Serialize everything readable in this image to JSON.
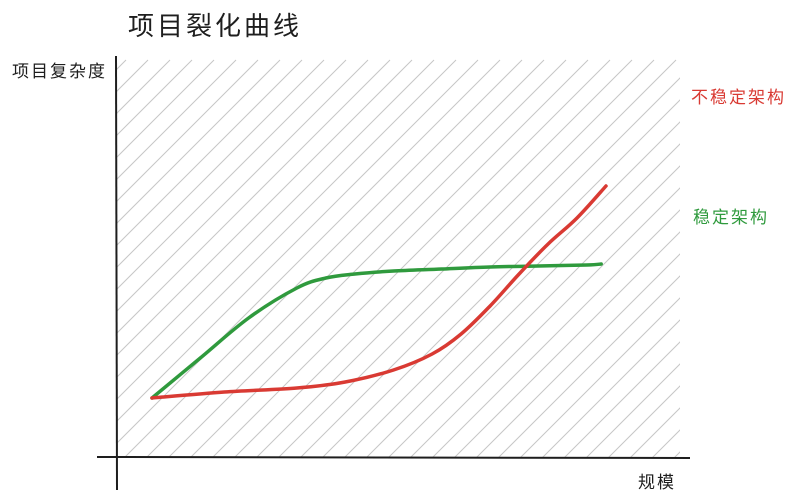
{
  "chart_data": {
    "type": "line",
    "title": "项目裂化曲线",
    "xlabel": "规模",
    "ylabel": "项目复杂度",
    "ticks_shown": false,
    "grid": false,
    "background": "diagonal-hatch",
    "legend_placement": "right (labels next to line ends)",
    "xlim": [
      0,
      100
    ],
    "ylim": [
      0,
      100
    ],
    "series": [
      {
        "name": "不稳定架构",
        "color": "#d93a33",
        "x": [
          0,
          15,
          30,
          40,
          50,
          58,
          64,
          70,
          76,
          82,
          88,
          94
        ],
        "y": [
          10,
          13,
          15,
          18,
          24,
          32,
          42,
          56,
          72,
          87,
          100,
          116
        ]
      },
      {
        "name": "稳定架构",
        "color": "#2f9a3d",
        "x": [
          0,
          10,
          20,
          30,
          36,
          42,
          50,
          60,
          70,
          80,
          90,
          93
        ],
        "y": [
          10,
          30,
          50,
          65,
          70,
          72,
          73.5,
          74.5,
          75.5,
          76,
          76.5,
          77
        ]
      }
    ]
  }
}
